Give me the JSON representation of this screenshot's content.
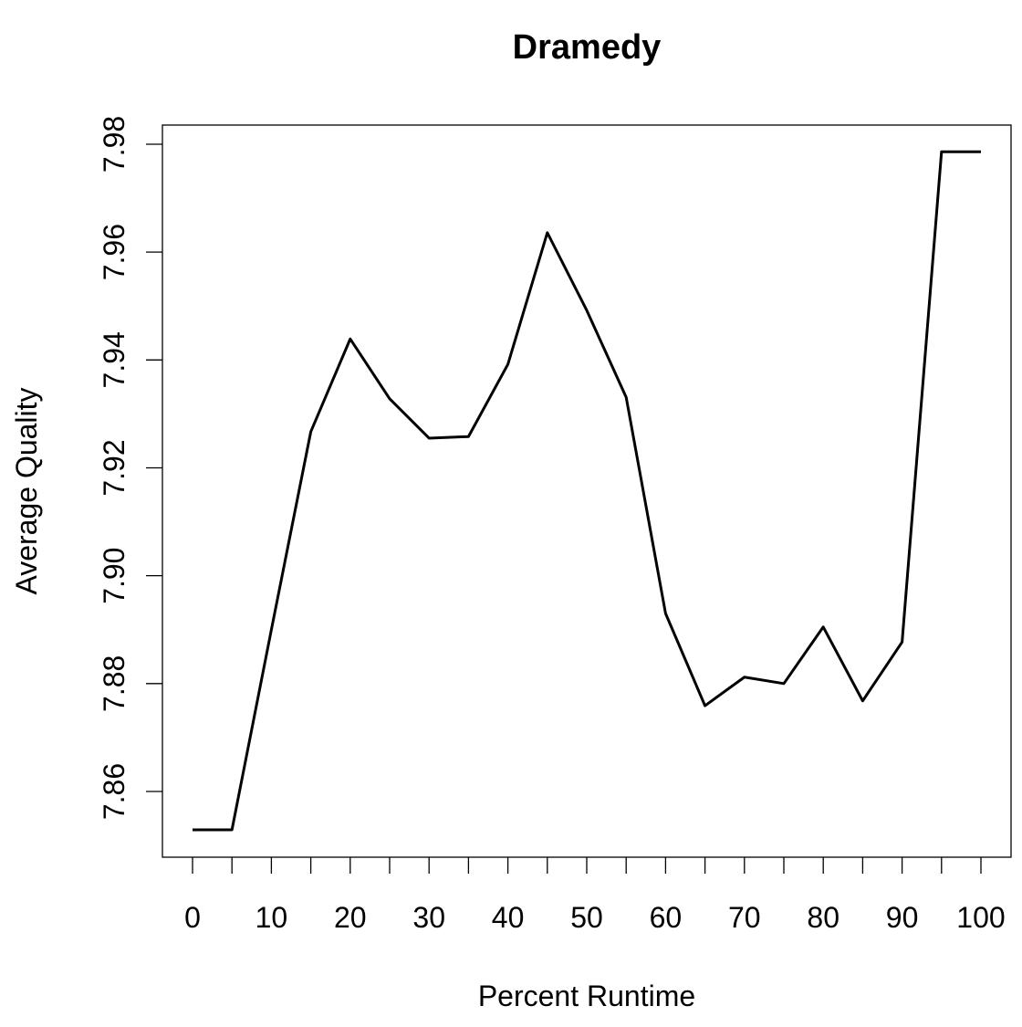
{
  "chart_data": {
    "type": "line",
    "title": "Dramedy",
    "xlabel": "Percent Runtime",
    "ylabel": "Average Quality",
    "xlim": [
      0,
      100
    ],
    "ylim": [
      7.85,
      7.98
    ],
    "xticks": [
      0,
      10,
      20,
      30,
      40,
      50,
      60,
      70,
      80,
      90,
      100
    ],
    "xtick_labels": [
      "0",
      "10",
      "20",
      "30",
      "40",
      "50",
      "60",
      "70",
      "80",
      "90",
      "100"
    ],
    "xminor_ticks": [
      5,
      15,
      25,
      35,
      45,
      55,
      65,
      75,
      85,
      95
    ],
    "yticks": [
      7.86,
      7.88,
      7.9,
      7.92,
      7.94,
      7.96,
      7.98
    ],
    "ytick_labels": [
      "7.86",
      "7.88",
      "7.90",
      "7.92",
      "7.94",
      "7.96",
      "7.98"
    ],
    "grid": false,
    "line_color": "#000000",
    "x": [
      0,
      5,
      10,
      15,
      20,
      25,
      30,
      35,
      40,
      45,
      50,
      55,
      60,
      65,
      70,
      75,
      80,
      85,
      90,
      95,
      100
    ],
    "y": [
      7.8529,
      7.8529,
      7.89,
      7.9267,
      7.9439,
      7.9328,
      7.9255,
      7.9258,
      7.9392,
      7.9636,
      7.9492,
      7.9331,
      7.893,
      7.8759,
      7.8812,
      7.88,
      7.8905,
      7.8768,
      7.8877,
      7.9786,
      7.9786
    ]
  }
}
